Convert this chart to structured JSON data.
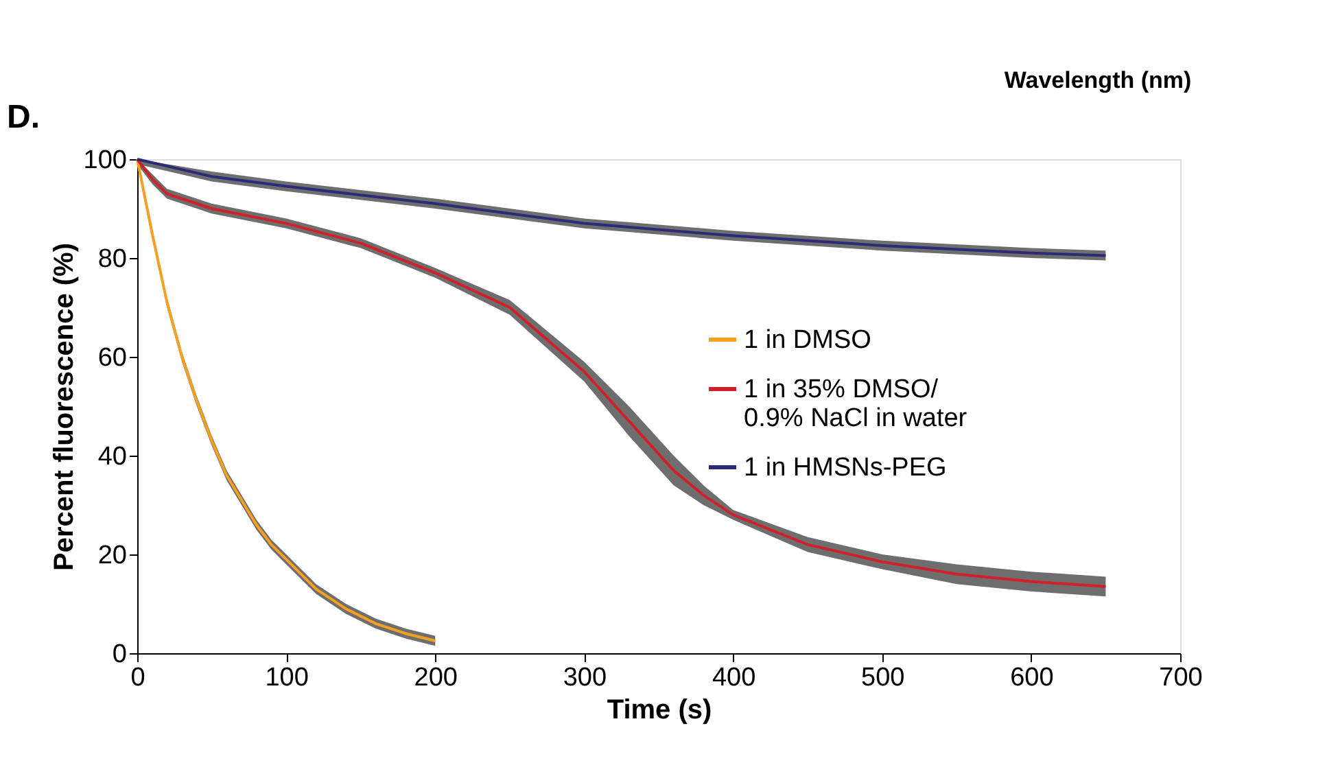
{
  "chart_data": {
    "type": "line",
    "xlabel": "Time (s)",
    "ylabel": "Percent fluorescence (%)",
    "annotations": [
      "D.",
      "Wavelength (nm)"
    ],
    "xlim": [
      0,
      700
    ],
    "xticks": [
      0,
      100,
      200,
      300,
      400,
      500,
      600,
      700
    ],
    "ylim": [
      0,
      100
    ],
    "yticks": [
      0,
      20,
      40,
      60,
      80,
      100
    ],
    "grid": false,
    "legend": "right",
    "marker": "none",
    "line_style": "solid",
    "series": [
      {
        "name": "1 in DMSO",
        "color": "#f5a020",
        "x": [
          0,
          10,
          20,
          30,
          40,
          50,
          60,
          70,
          80,
          90,
          100,
          120,
          140,
          160,
          180,
          200
        ],
        "values": [
          100,
          85,
          71,
          60,
          51,
          43,
          36,
          31,
          26,
          22,
          19,
          13,
          9,
          6,
          4,
          2.5
        ],
        "lower": [
          99,
          84,
          70,
          59,
          50,
          42,
          35,
          30,
          25,
          21,
          18,
          12,
          8,
          5,
          3,
          1.5
        ],
        "upper": [
          100,
          86,
          72,
          61,
          52,
          44,
          37,
          32,
          27,
          23,
          20,
          14,
          10,
          7,
          5,
          3.5
        ]
      },
      {
        "name": "1 in 35% DMSO/\n0.9% NaCl in water",
        "color": "#d0202a",
        "x": [
          0,
          10,
          20,
          50,
          100,
          150,
          200,
          250,
          300,
          330,
          360,
          380,
          400,
          450,
          500,
          550,
          600,
          650
        ],
        "values": [
          100,
          96,
          93,
          90,
          87,
          83,
          77,
          70,
          57,
          47,
          37,
          32,
          28,
          22,
          18.5,
          16,
          14.5,
          13.5
        ],
        "lower": [
          99,
          95,
          92,
          89,
          86,
          82,
          76,
          68.5,
          55,
          44,
          34,
          30,
          27,
          20.5,
          17,
          14,
          12.5,
          11.5
        ],
        "upper": [
          100,
          97,
          94,
          91,
          88,
          84,
          78,
          71.5,
          59,
          50,
          40,
          34,
          29,
          23.5,
          20,
          18,
          16.5,
          15.5
        ]
      },
      {
        "name": "1 in HMSNs-PEG",
        "color": "#2a2a78",
        "x": [
          0,
          50,
          100,
          200,
          300,
          400,
          500,
          600,
          650
        ],
        "values": [
          100,
          96.5,
          94.5,
          91,
          87,
          84.5,
          82.5,
          81,
          80.5
        ],
        "lower": [
          99,
          95.5,
          93.5,
          90,
          86,
          83.5,
          81.5,
          80,
          79.5
        ],
        "upper": [
          100,
          97.5,
          95.5,
          92,
          88,
          85.5,
          83.5,
          82,
          81.5
        ]
      }
    ]
  }
}
